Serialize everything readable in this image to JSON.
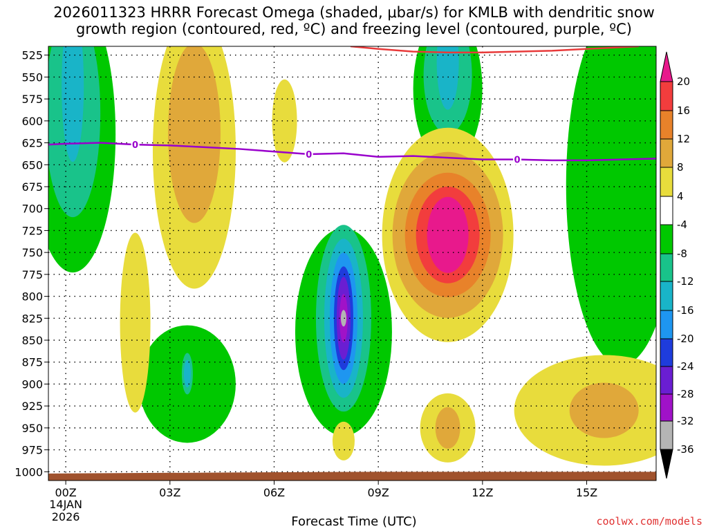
{
  "title_line1": "2026011323 HRRR Forecast Omega (shaded, μbar/s) for KMLB with dendritic snow",
  "title_line2": "growth region (contoured, red, ºC) and freezing level (contoured, purple, ºC)",
  "x_axis_label": "Forecast Time (UTC)",
  "credit": "coolwx.com/models",
  "colors": {
    "freezing_level": "#9900cc",
    "dgz": "#e83a3a",
    "ground": "#a0522d"
  },
  "chart_data": {
    "type": "heatmap",
    "title": "2026011323 HRRR Forecast Omega (shaded, μbar/s) for KMLB with dendritic snow growth region (contoured, red, ºC) and freezing level (contoured, purple, ºC)",
    "xlabel": "Forecast Time (UTC)",
    "ylabel": "",
    "x_range_hours": [
      -0.5,
      17
    ],
    "y_range_hpa": [
      515,
      1010
    ],
    "x_ticks": [
      {
        "hour": 0,
        "label": "00Z",
        "sublabel1": "14JAN",
        "sublabel2": "2026"
      },
      {
        "hour": 3,
        "label": "03Z"
      },
      {
        "hour": 6,
        "label": "06Z"
      },
      {
        "hour": 9,
        "label": "09Z"
      },
      {
        "hour": 12,
        "label": "12Z"
      },
      {
        "hour": 15,
        "label": "15Z"
      }
    ],
    "y_ticks": [
      525,
      550,
      575,
      600,
      625,
      650,
      675,
      700,
      725,
      750,
      775,
      800,
      825,
      850,
      875,
      900,
      925,
      950,
      975,
      1000
    ],
    "grid": true,
    "colorbar": {
      "labels": [
        "20",
        "16",
        "12",
        "8",
        "4",
        "-4",
        "-8",
        "-12",
        "-16",
        "-20",
        "-24",
        "-28",
        "-32",
        "-36"
      ],
      "bins": [
        {
          "range": ">20",
          "color": "#e8198c"
        },
        {
          "range": "16 to 20",
          "color": "#f23d3d"
        },
        {
          "range": "12 to 16",
          "color": "#e8822a"
        },
        {
          "range": "8 to 12",
          "color": "#e0a83a"
        },
        {
          "range": "4 to 8",
          "color": "#e8dc3c"
        },
        {
          "range": "-4 to 4",
          "color": "#ffffff"
        },
        {
          "range": "-8 to -4",
          "color": "#00c800"
        },
        {
          "range": "-12 to -8",
          "color": "#19c38a"
        },
        {
          "range": "-16 to -12",
          "color": "#19b4c8"
        },
        {
          "range": "-20 to -16",
          "color": "#1e96f0"
        },
        {
          "range": "-24 to -20",
          "color": "#1e3cdc"
        },
        {
          "range": "-28 to -24",
          "color": "#6a1ed2"
        },
        {
          "range": "-32 to -28",
          "color": "#a012c8"
        },
        {
          "range": "-36 to -32",
          "color": "#b4b4b4"
        },
        {
          "range": "<-36",
          "color": "#000000"
        }
      ]
    },
    "freezing_level": {
      "label": "0",
      "label_hours": [
        2.0,
        7.0,
        13.0
      ],
      "points": [
        [
          -0.5,
          627
        ],
        [
          0,
          626
        ],
        [
          1,
          625
        ],
        [
          2,
          627
        ],
        [
          3,
          628
        ],
        [
          4,
          630
        ],
        [
          5,
          632
        ],
        [
          6,
          635
        ],
        [
          7,
          638
        ],
        [
          8,
          637
        ],
        [
          9,
          641
        ],
        [
          10,
          640
        ],
        [
          11,
          642
        ],
        [
          12,
          644
        ],
        [
          13,
          644
        ],
        [
          14,
          645
        ],
        [
          15,
          645
        ],
        [
          16,
          644
        ],
        [
          17,
          643
        ]
      ]
    },
    "dgz": {
      "points": [
        [
          8.2,
          515
        ],
        [
          9,
          518
        ],
        [
          10,
          521
        ],
        [
          11,
          522
        ],
        [
          12,
          522
        ],
        [
          13,
          521
        ],
        [
          14,
          520
        ],
        [
          15,
          518
        ],
        [
          16,
          516
        ],
        [
          16.5,
          515
        ]
      ]
    },
    "omega_features": [
      {
        "sign": "negative",
        "levels": [
          -4,
          -8,
          -12
        ],
        "center_hour": 0.2,
        "center_hpa": 560,
        "peak": -12
      },
      {
        "sign": "negative",
        "levels": [
          -4,
          -8,
          -12
        ],
        "center_hour": 11.0,
        "center_hpa": 540,
        "peak": -12
      },
      {
        "sign": "negative",
        "levels": [
          -4
        ],
        "center_hour": 16.0,
        "center_hpa": 650,
        "peak": -8
      },
      {
        "sign": "positive",
        "levels": [
          4,
          8
        ],
        "center_hour": 3.7,
        "center_hpa": 610,
        "peak": 11
      },
      {
        "sign": "positive",
        "levels": [
          4
        ],
        "center_hour": 6.3,
        "center_hpa": 600,
        "peak": 7
      },
      {
        "sign": "positive",
        "levels": [
          4,
          8,
          12,
          16,
          20
        ],
        "center_hour": 11.0,
        "center_hpa": 730,
        "peak": 23
      },
      {
        "sign": "negative",
        "levels": [
          -4,
          -8,
          -12,
          -16,
          -20,
          -24,
          -28,
          -32
        ],
        "center_hour": 8.0,
        "center_hpa": 825,
        "peak": -34
      },
      {
        "sign": "negative",
        "levels": [
          -4,
          -8,
          -12
        ],
        "center_hour": 3.5,
        "center_hpa": 900,
        "peak": -12
      },
      {
        "sign": "positive",
        "levels": [
          4,
          8
        ],
        "center_hour": 15.5,
        "center_hpa": 930,
        "peak": 10
      },
      {
        "sign": "positive",
        "levels": [
          4,
          8
        ],
        "center_hour": 11.0,
        "center_hpa": 950,
        "peak": 9
      },
      {
        "sign": "positive",
        "levels": [
          4
        ],
        "center_hour": 2.0,
        "center_hpa": 830,
        "peak": 6
      },
      {
        "sign": "positive",
        "levels": [
          4
        ],
        "center_hour": 8.0,
        "center_hpa": 965,
        "peak": 6
      }
    ]
  }
}
